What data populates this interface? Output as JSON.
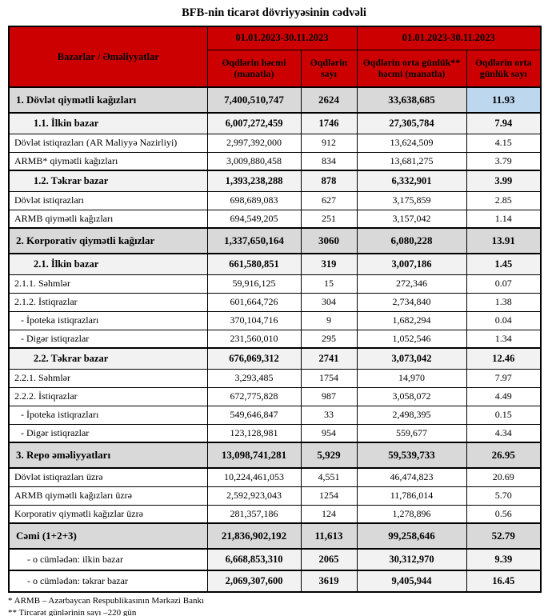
{
  "title": "BFB-nin ticarət dövriyyəsinin cədvəli",
  "colors": {
    "header_bg": "#CC0000",
    "section_bg": "#D9D9D9",
    "subsection_bg": "#F2F2F2",
    "highlight_bg": "#BDD7EE",
    "border": "#000000"
  },
  "table": {
    "corner_header": "Bazarlar / Əməliyyatlar",
    "period_headers": [
      "01.01.2023-30.11.2023",
      "01.01.2023-30.11.2023"
    ],
    "column_headers": [
      "Əqdlərin həcmi (manatla)",
      "Əqdlərin sayı",
      "Əqdlərin orta günlük** həcmi (manatla)",
      "Əqdlərin orta günlük sayı"
    ],
    "rows": [
      {
        "label": "1. Dövlət qiymətli kağızları",
        "values": [
          "7,400,510,747",
          "2624",
          "33,638,685",
          "11.93"
        ],
        "style": "section",
        "highlight_last": true
      },
      {
        "label": "1.1. İlkin bazar",
        "values": [
          "6,007,272,459",
          "1746",
          "27,305,784",
          "7.94"
        ],
        "style": "subsection"
      },
      {
        "label": "Dövlət istiqrazları (AR Maliyyə Nazirliyi)",
        "values": [
          "2,997,392,000",
          "912",
          "13,624,509",
          "4.15"
        ],
        "style": "normal"
      },
      {
        "label": "ARMB* qiymətli kağızları",
        "values": [
          "3,009,880,458",
          "834",
          "13,681,275",
          "3.79"
        ],
        "style": "normal"
      },
      {
        "label": "1.2. Təkrar bazar",
        "values": [
          "1,393,238,288",
          "878",
          "6,332,901",
          "3.99"
        ],
        "style": "subsection"
      },
      {
        "label": "Dövlət istiqrazları",
        "values": [
          "698,689,083",
          "627",
          "3,175,859",
          "2.85"
        ],
        "style": "normal"
      },
      {
        "label": "ARMB qiymətli kağızları",
        "values": [
          "694,549,205",
          "251",
          "3,157,042",
          "1.14"
        ],
        "style": "normal"
      },
      {
        "label": "2. Korporativ qiymətli kağızlar",
        "values": [
          "1,337,650,164",
          "3060",
          "6,080,228",
          "13.91"
        ],
        "style": "section"
      },
      {
        "label": "2.1. İlkin bazar",
        "values": [
          "661,580,851",
          "319",
          "3,007,186",
          "1.45"
        ],
        "style": "subsection"
      },
      {
        "label": "2.1.1. Səhmlər",
        "values": [
          "59,916,125",
          "15",
          "272,346",
          "0.07"
        ],
        "style": "normal"
      },
      {
        "label": "2.1.2. İstiqrazlar",
        "values": [
          "601,664,726",
          "304",
          "2,734,840",
          "1.38"
        ],
        "style": "normal"
      },
      {
        "label": "- İpoteka istiqrazları",
        "values": [
          "370,104,716",
          "9",
          "1,682,294",
          "0.04"
        ],
        "style": "normal",
        "indent": true
      },
      {
        "label": "- Digər istiqrazlar",
        "values": [
          "231,560,010",
          "295",
          "1,052,546",
          "1.34"
        ],
        "style": "normal",
        "indent": true
      },
      {
        "label": "2.2. Təkrar bazar",
        "values": [
          "676,069,312",
          "2741",
          "3,073,042",
          "12.46"
        ],
        "style": "subsection"
      },
      {
        "label": "2.2.1. Səhmlər",
        "values": [
          "3,293,485",
          "1754",
          "14,970",
          "7.97"
        ],
        "style": "normal"
      },
      {
        "label": "2.2.2. İstiqrazlar",
        "values": [
          "672,775,828",
          "987",
          "3,058,072",
          "4.49"
        ],
        "style": "normal"
      },
      {
        "label": "- İpoteka istiqrazları",
        "values": [
          "549,646,847",
          "33",
          "2,498,395",
          "0.15"
        ],
        "style": "normal",
        "indent": true
      },
      {
        "label": "- Digər istiqrazlar",
        "values": [
          "123,128,981",
          "954",
          "559,677",
          "4.34"
        ],
        "style": "normal",
        "indent": true
      },
      {
        "label": "3. Repo əməliyyatları",
        "values": [
          "13,098,741,281",
          "5,929",
          "59,539,733",
          "26.95"
        ],
        "style": "section"
      },
      {
        "label": "Dövlət istiqrazları üzrə",
        "values": [
          "10,224,461,053",
          "4,551",
          "46,474,823",
          "20.69"
        ],
        "style": "normal"
      },
      {
        "label": "ARMB qiymətli kağızları üzrə",
        "values": [
          "2,592,923,043",
          "1254",
          "11,786,014",
          "5.70"
        ],
        "style": "normal"
      },
      {
        "label": "Korporativ qiymətli kağızlar üzrə",
        "values": [
          "281,357,186",
          "124",
          "1,278,896",
          "0.56"
        ],
        "style": "normal"
      },
      {
        "label": "Cəmi (1+2+3)",
        "values": [
          "21,836,902,192",
          "11,613",
          "99,258,646",
          "52.79"
        ],
        "style": "section"
      },
      {
        "label": "- o cümlədən: ilkin bazar",
        "values": [
          "6,668,853,310",
          "2065",
          "30,312,970",
          "9.39"
        ],
        "style": "total-sub"
      },
      {
        "label": "- o cümlədən: təkrar bazar",
        "values": [
          "2,069,307,600",
          "3619",
          "9,405,944",
          "16.45"
        ],
        "style": "total-sub"
      }
    ],
    "footnotes": [
      "* ARMB – Azərbaycan Respublikasının Mərkəzi Bankı",
      "** Tircarət günlərinin sayı –220 gün"
    ]
  }
}
